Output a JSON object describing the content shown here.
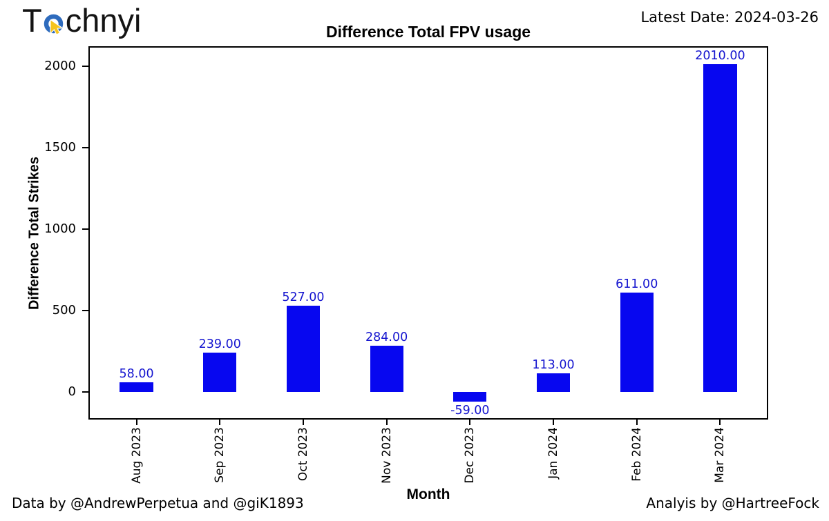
{
  "header": {
    "logo": {
      "text_prefix": "T",
      "text_suffix": "chnyi",
      "icon": "cursor-target-icon",
      "ring_color": "#2e6bbd",
      "cursor_color": "#f6c41d"
    },
    "latest_date": "Latest Date: 2024-03-26"
  },
  "chart_data": {
    "type": "bar",
    "title": "Difference Total FPV usage",
    "xlabel": "Month",
    "ylabel": "Difference Total Strikes",
    "categories": [
      "Aug 2023",
      "Sep 2023",
      "Oct 2023",
      "Nov 2023",
      "Dec 2023",
      "Jan 2024",
      "Feb 2024",
      "Mar 2024"
    ],
    "values": [
      58,
      239,
      527,
      284,
      -59,
      113,
      611,
      2010
    ],
    "value_labels": [
      "58.00",
      "239.00",
      "527.00",
      "284.00",
      "-59.00",
      "113.00",
      "611.00",
      "2010.00"
    ],
    "yticks": [
      0,
      500,
      1000,
      1500,
      2000
    ],
    "ylim": [
      -162.45,
      2113.45
    ],
    "x_pad": 0.56,
    "bar_width_frac": 0.4,
    "bar_color": "#0707f0",
    "value_label_color": "#1414cf",
    "axis_color": "#000000",
    "grid": false,
    "legend": null
  },
  "footer": {
    "credit_left": "Data by @AndrewPerpetua and @giK1893",
    "credit_right": "Analyis by @HartreeFock"
  }
}
